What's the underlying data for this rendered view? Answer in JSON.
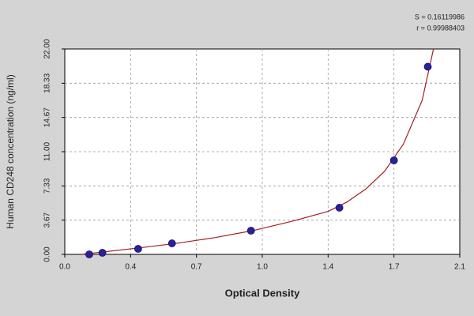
{
  "chart_data": {
    "type": "scatter",
    "xlabel": "Optical Density",
    "ylabel": "Human CD248 concentration (ng/ml)",
    "annotations": [
      "S = 0.16119986",
      "r = 0.99988403"
    ],
    "xlim": [
      0,
      2.1
    ],
    "xticks": [
      {
        "value": 0,
        "label": "0.0"
      },
      {
        "value": 0.35,
        "label": "0.4"
      },
      {
        "value": 0.7,
        "label": "0.7"
      },
      {
        "value": 1.05,
        "label": "1.0"
      },
      {
        "value": 1.4,
        "label": "1.4"
      },
      {
        "value": 1.75,
        "label": "1.7"
      },
      {
        "value": 2.1,
        "label": "2.1"
      }
    ],
    "ylim": [
      0,
      22
    ],
    "yticks": [
      {
        "value": 0,
        "label": "0.00"
      },
      {
        "value": 3.667,
        "label": "3.67"
      },
      {
        "value": 7.333,
        "label": "7.33"
      },
      {
        "value": 11,
        "label": "11.00"
      },
      {
        "value": 14.667,
        "label": "14.67"
      },
      {
        "value": 18.333,
        "label": "18.33"
      },
      {
        "value": 22,
        "label": "22.00"
      }
    ],
    "grid": true,
    "series": [
      {
        "color": "#2a1f9e",
        "x": [
          0.13,
          0.2,
          0.39,
          0.57,
          0.99,
          1.46,
          1.75,
          1.93
        ],
        "values": [
          0,
          0.17,
          0.59,
          1.18,
          2.54,
          5.0,
          10.07,
          20.1
        ]
      }
    ],
    "fit": {
      "color": "#a02020",
      "x": [
        0.09,
        0.2,
        0.4,
        0.6,
        0.8,
        1.0,
        1.2,
        1.4,
        1.5,
        1.6,
        1.7,
        1.8,
        1.9,
        1.96
      ],
      "values": [
        0,
        0.25,
        0.7,
        1.2,
        1.8,
        2.55,
        3.5,
        4.6,
        5.6,
        7.0,
        8.9,
        11.8,
        16.5,
        22
      ]
    }
  }
}
